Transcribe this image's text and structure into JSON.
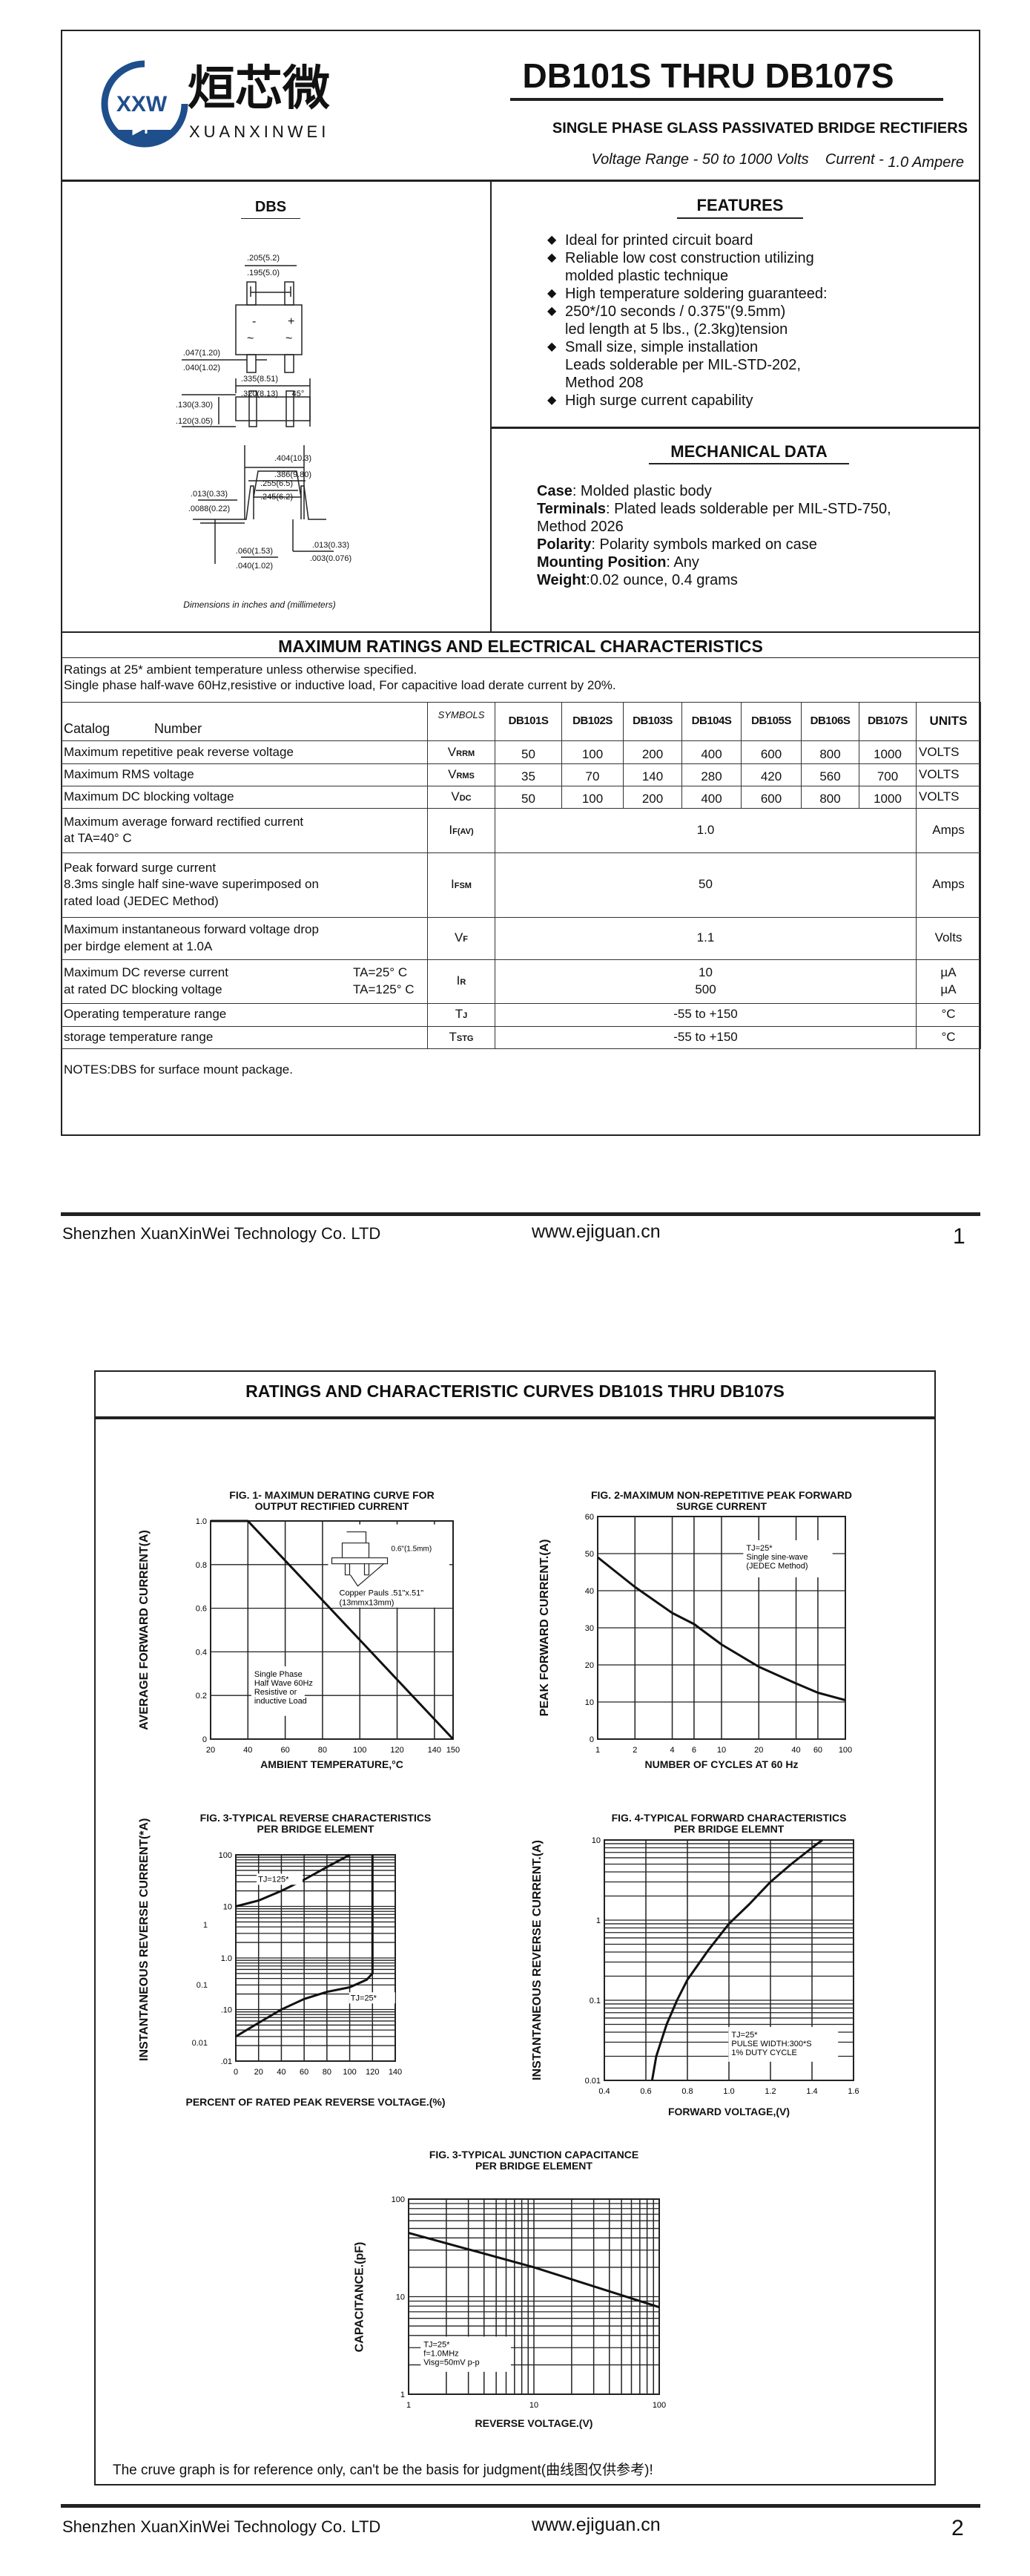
{
  "header": {
    "logo_mark": "XXW",
    "logo_cn": "烜芯微",
    "logo_en": "XUANXINWEI",
    "title": "DB101S THRU DB107S",
    "subtitle": "SINGLE PHASE GLASS PASSIVATED BRIDGE RECTIFIERS",
    "voltage_range": "Voltage Range - 50 to 1000 Volts",
    "current_label": "Current -",
    "current_value": "1.0 Ampere",
    "brand_color": "#1f4e8c"
  },
  "package": {
    "title": "DBS",
    "minus": "-",
    "plus": "+",
    "ac": "~",
    "dims": [
      ".205(5.2)",
      ".195(5.0)",
      ".047(1.20)",
      ".040(1.02)",
      ".335(8.51)",
      ".320(8.13)",
      "45°",
      ".130(3.30)",
      ".120(3.05)",
      ".404(10.3)",
      ".386(9.80)",
      ".255(6.5)",
      ".245(6.2)",
      ".013(0.33)",
      ".0088(0.22)",
      ".060(1.53)",
      ".040(1.02)",
      ".013(0.33)",
      ".003(0.076)"
    ],
    "note": "Dimensions in inches and (millimeters)"
  },
  "features": {
    "title": "FEATURES",
    "items": [
      [
        "Ideal for printed circuit board"
      ],
      [
        "Reliable low cost construction utilizing",
        "molded plastic technique"
      ],
      [
        "High temperature soldering guaranteed:"
      ],
      [
        "250*/10 seconds / 0.375\"(9.5mm)",
        "led length at 5 lbs., (2.3kg)tension"
      ],
      [
        "Small size, simple installation",
        "Leads solderable per MIL-STD-202,",
        "Method 208"
      ],
      [
        "High surge current capability"
      ]
    ]
  },
  "mechanical": {
    "title": "MECHANICAL DATA",
    "items": [
      {
        "label": "Case",
        "text": ": Molded plastic body"
      },
      {
        "label": "Terminals",
        "text": ": Plated leads solderable per MIL-STD-750,"
      },
      {
        "label": "",
        "text": " Method 2026"
      },
      {
        "label": "Polarity",
        "text": ": Polarity symbols marked on case"
      },
      {
        "label": "Mounting Position",
        "text": ": Any"
      },
      {
        "label": "Weight",
        "text": ":0.02 ounce, 0.4 grams"
      }
    ]
  },
  "ratings": {
    "title": "MAXIMUM RATINGS AND ELECTRICAL CHARACTERISTICS",
    "notes": [
      "Ratings at 25* ambient temperature unless otherwise specified.",
      "Single phase half-wave 60Hz,resistive or inductive load, For capacitive load derate current by 20%."
    ],
    "header": {
      "catalog": "Catalog",
      "number": "Number",
      "symbols": "SYMBOLS",
      "parts": [
        "DB101S",
        "DB102S",
        "DB103S",
        "DB104S",
        "DB105S",
        "DB106S",
        "DB107S"
      ],
      "units": "UNITS"
    },
    "rows": [
      {
        "param": [
          "Maximum repetitive peak reverse voltage"
        ],
        "sym": "V",
        "sub": "RRM",
        "values": [
          "50",
          "100",
          "200",
          "400",
          "600",
          "800",
          "1000"
        ],
        "unit": [
          "VOLTS"
        ]
      },
      {
        "param": [
          "Maximum RMS voltage"
        ],
        "sym": "V",
        "sub": "RMS",
        "values": [
          "35",
          "70",
          "140",
          "280",
          "420",
          "560",
          "700"
        ],
        "unit": [
          "VOLTS"
        ]
      },
      {
        "param": [
          "Maximum DC blocking voltage"
        ],
        "sym": "V",
        "sub": "DC",
        "values": [
          "50",
          "100",
          "200",
          "400",
          "600",
          "800",
          "1000"
        ],
        "unit": [
          "VOLTS"
        ]
      },
      {
        "param": [
          "Maximum average forward rectified current",
          "at TA=40° C"
        ],
        "sym": "I",
        "sub": "F(AV)",
        "value": [
          "1.0"
        ],
        "unit": [
          "Amps"
        ]
      },
      {
        "param": [
          "Peak forward surge current",
          "8.3ms single half sine-wave superimposed on",
          "rated load (JEDEC Method)"
        ],
        "sym": "I",
        "sub": "FSM",
        "value": [
          "50"
        ],
        "unit": [
          "Amps"
        ]
      },
      {
        "param": [
          "Maximum instantaneous forward voltage drop",
          "per birdge element at 1.0A"
        ],
        "sym": "V",
        "sub": "F",
        "value": [
          "1.1"
        ],
        "unit": [
          "Volts"
        ]
      },
      {
        "param": [
          "Maximum DC reverse current",
          "at rated DC blocking voltage"
        ],
        "cond": [
          "TA=25° C",
          "TA=125° C"
        ],
        "sym": "I",
        "sub": "R",
        "value": [
          "10",
          "500"
        ],
        "unit": [
          "µA",
          "µA"
        ]
      },
      {
        "param": [
          "Operating temperature range"
        ],
        "sym": "T",
        "sub": "J",
        "value": [
          "-55 to +150"
        ],
        "unit": [
          "°C"
        ]
      },
      {
        "param": [
          "storage temperature range"
        ],
        "sym": "T",
        "sub": "STG",
        "value": [
          "-55 to +150"
        ],
        "unit": [
          "°C"
        ]
      }
    ],
    "footnote": "NOTES:DBS for surface mount package."
  },
  "footer1": {
    "company": "Shenzhen XuanXinWei Technology Co. LTD",
    "website": "www.ejiguan.cn",
    "page": "1"
  },
  "page2": {
    "title": "RATINGS AND CHARACTERISTIC CURVES DB101S THRU DB107S",
    "note": "The cruve graph is for reference only, can't be the basis for judgment(曲线图仅供参考)!"
  },
  "footer2": {
    "company": "Shenzhen XuanXinWei Technology Co. LTD",
    "website": "www.ejiguan.cn",
    "page": "2"
  },
  "chart_data": [
    {
      "type": "line",
      "title": [
        "FIG. 1- MAXIMUN DERATING CURVE FOR",
        "OUTPUT RECTIFIED CURRENT"
      ],
      "xlabel": "AMBIENT TEMPERATURE,°C",
      "ylabel": "AVERAGE FORWARD CURRENT(A)",
      "xscale": "linear",
      "yscale": "linear",
      "xlim": [
        20,
        150
      ],
      "ylim": [
        0,
        1.0
      ],
      "x_ticks": [
        20,
        40,
        60,
        80,
        100,
        120,
        140,
        150
      ],
      "x_tick_labels": [
        "20",
        "40",
        "60",
        "80",
        "100",
        "120",
        "140",
        "150"
      ],
      "y_ticks": [
        0,
        0.2,
        0.4,
        0.6,
        0.8,
        1.0
      ],
      "y_tick_labels": [
        "0",
        "0.2",
        "0.4",
        "0.6",
        "0.8",
        "1.0"
      ],
      "grid": true,
      "series": [
        {
          "x": [
            20,
            40,
            150
          ],
          "y": [
            1.0,
            1.0,
            0
          ]
        }
      ],
      "annotations": [
        [
          "Single Phase",
          "Half Wave 60Hz",
          "Resistive or",
          "inductive Load"
        ],
        [
          "0.6\"(1.5mm)"
        ],
        [
          "Copper Pauls .51\"x.51\"",
          "(13mmx13mm)"
        ]
      ]
    },
    {
      "type": "line",
      "title": [
        "FIG. 2-MAXIMUM NON-REPETITIVE PEAK FORWARD",
        "SURGE CURRENT"
      ],
      "xlabel": "NUMBER OF CYCLES AT 60 Hz",
      "ylabel": "PEAK  FORWARD CURRENT.(A)",
      "xscale": "log",
      "yscale": "linear",
      "xlim": [
        1,
        100
      ],
      "ylim": [
        0,
        60
      ],
      "x_ticks": [
        1,
        2,
        4,
        6,
        10,
        20,
        40,
        60,
        100
      ],
      "x_tick_labels": [
        "1",
        "2",
        "4",
        "6",
        "10",
        "20",
        "40",
        "60",
        "100"
      ],
      "y_ticks": [
        0,
        10,
        20,
        30,
        40,
        50,
        60
      ],
      "y_tick_labels": [
        "0",
        "10",
        "20",
        "30",
        "40",
        "50",
        "60"
      ],
      "grid": true,
      "series": [
        {
          "x": [
            1,
            2,
            4,
            6,
            10,
            20,
            40,
            60,
            100
          ],
          "y": [
            49,
            41,
            34,
            31,
            25.5,
            19.5,
            15,
            12.5,
            10.5
          ]
        }
      ],
      "annotations": [
        [
          "TJ=25*",
          "Single sine-wave",
          "(JEDEC Method)"
        ]
      ]
    },
    {
      "type": "line",
      "title": [
        "FIG. 3-TYPICAL REVERSE CHARACTERISTICS",
        "PER BRIDGE ELEMENT"
      ],
      "xlabel": "PERCENT OF RATED PEAK REVERSE VOLTAGE.(%)",
      "ylabel": "INSTANTANEOUS REVERSE CURRENT(*A)",
      "xscale": "linear",
      "yscale": "log",
      "xlim": [
        0,
        140
      ],
      "ylim": [
        0.01,
        100
      ],
      "x_ticks": [
        0,
        20,
        40,
        60,
        80,
        100,
        120,
        140
      ],
      "x_tick_labels": [
        "0",
        "20",
        "40",
        "60",
        "80",
        "100",
        "120",
        "140"
      ],
      "y_ticks": [
        100,
        10,
        1,
        0.1,
        0.01
      ],
      "y_tick_labels": [
        "100",
        "10",
        "1.0",
        ".10",
        ".01"
      ],
      "secondary_y_tick_labels": [
        "1",
        "0.1",
        "0.01"
      ],
      "grid": true,
      "series": [
        {
          "name": "TJ=125*",
          "x": [
            0,
            20,
            40,
            60,
            80,
            100
          ],
          "y": [
            10,
            13,
            20,
            33,
            58,
            100
          ]
        },
        {
          "name": "TJ=25*",
          "x": [
            0,
            20,
            40,
            60,
            80,
            100,
            115,
            120,
            120
          ],
          "y": [
            0.03,
            0.055,
            0.1,
            0.16,
            0.22,
            0.27,
            0.38,
            0.5,
            100
          ]
        }
      ]
    },
    {
      "type": "line",
      "title": [
        "FIG. 4-TYPICAL FORWARD CHARACTERISTICS",
        "PER BRIDGE ELEMNT"
      ],
      "xlabel": "FORWARD VOLTAGE,(V)",
      "ylabel": "INSTANTANEOUS REVERSE CURRENT.(A)",
      "xscale": "linear",
      "yscale": "log",
      "xlim": [
        0.4,
        1.6
      ],
      "ylim": [
        0.01,
        10
      ],
      "x_ticks": [
        0.4,
        0.6,
        0.8,
        1.0,
        1.2,
        1.4,
        1.6
      ],
      "x_tick_labels": [
        "0.4",
        "0.6",
        "0.8",
        "1.0",
        "1.2",
        "1.4",
        "1.6"
      ],
      "y_ticks": [
        0.01,
        0.1,
        1,
        10
      ],
      "y_tick_labels": [
        "0.01",
        "0.1",
        "1",
        "10"
      ],
      "grid": true,
      "series": [
        {
          "x": [
            0.63,
            0.65,
            0.7,
            0.75,
            0.8,
            0.9,
            1.0,
            1.1,
            1.2,
            1.3,
            1.4,
            1.45
          ],
          "y": [
            0.01,
            0.02,
            0.05,
            0.1,
            0.18,
            0.42,
            0.9,
            1.6,
            3,
            5,
            8,
            10
          ]
        }
      ],
      "annotations": [
        [
          "TJ=25*",
          "PULSE WIDTH:300*S",
          "1% DUTY CYCLE"
        ]
      ]
    },
    {
      "type": "line",
      "title": [
        "FIG. 3-TYPICAL JUNCTION CAPACITANCE",
        "PER BRIDGE ELEMENT"
      ],
      "xlabel": "REVERSE VOLTAGE.(V)",
      "ylabel": "CAPACITANCE.(pF)",
      "xscale": "log",
      "yscale": "log",
      "xlim": [
        1,
        100
      ],
      "ylim": [
        1,
        100
      ],
      "x_ticks": [
        1,
        10,
        100
      ],
      "x_tick_labels": [
        "1",
        "10",
        "100"
      ],
      "y_ticks": [
        1,
        10,
        100
      ],
      "y_tick_labels": [
        "1",
        "10",
        "100"
      ],
      "grid": true,
      "series": [
        {
          "x": [
            1,
            10,
            100
          ],
          "y": [
            45,
            20,
            7.8
          ]
        }
      ],
      "annotations": [
        [
          "TJ=25*",
          "f=1.0MHz",
          "Visg=50mV p-p"
        ]
      ]
    }
  ]
}
